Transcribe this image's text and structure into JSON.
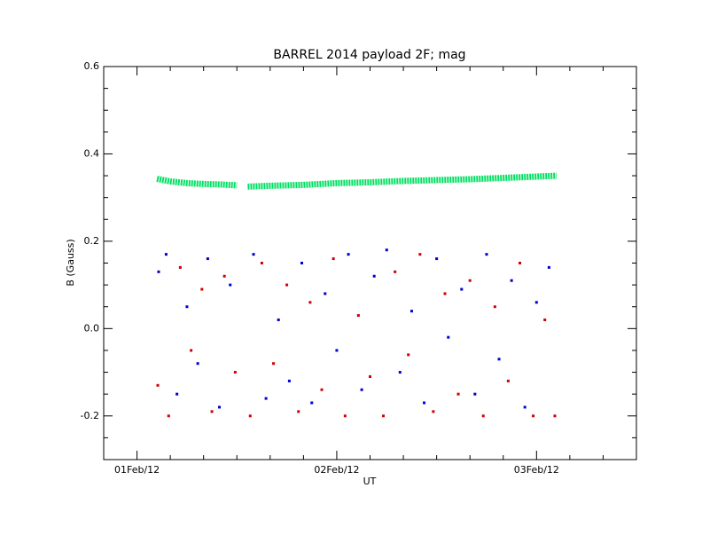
{
  "chart_data": {
    "type": "scatter",
    "title": "BARREL 2014 payload 2F; mag",
    "x_label": "UT",
    "y_label": "B (Gauss)",
    "xlim": [
      -4,
      60
    ],
    "ylim": [
      -0.3,
      0.6
    ],
    "xticks": [
      {
        "value": 0,
        "label": "01Feb/12"
      },
      {
        "value": 24,
        "label": "02Feb/12"
      },
      {
        "value": 48,
        "label": "03Feb/12"
      }
    ],
    "xminorticks": [
      -4,
      4,
      8,
      12,
      16,
      20,
      28,
      32,
      36,
      40,
      44,
      52,
      56,
      60
    ],
    "yticks": [
      {
        "value": -0.2,
        "label": "-0.2"
      },
      {
        "value": 0,
        "label": "0.0"
      },
      {
        "value": 0.2,
        "label": "0.2"
      },
      {
        "value": 0.4,
        "label": "0.4"
      },
      {
        "value": 0.6,
        "label": "0.6"
      }
    ],
    "yminorticks": [
      -0.3,
      -0.25,
      -0.15,
      -0.1,
      -0.05,
      0.05,
      0.1,
      0.15,
      0.25,
      0.3,
      0.35,
      0.45,
      0.5,
      0.55
    ],
    "series": [
      {
        "style": "line",
        "color": "#00e060",
        "x": [
          2.4,
          4,
          6,
          8,
          10,
          12,
          12.6,
          13.3,
          16,
          20,
          24,
          28,
          32,
          36,
          40,
          44,
          48,
          50.4
        ],
        "values": [
          0.343,
          0.337,
          0.333,
          0.331,
          0.33,
          0.328,
          null,
          0.325,
          0.327,
          0.329,
          0.333,
          0.335,
          0.338,
          0.34,
          0.342,
          0.345,
          0.348,
          0.35
        ]
      },
      {
        "style": "points",
        "color": "#d00000",
        "x": [
          2.5,
          3.8,
          5.2,
          6.5,
          7.8,
          9,
          10.5,
          11.8,
          13.6,
          15,
          16.4,
          18,
          19.4,
          20.8,
          22.2,
          23.6,
          25,
          26.6,
          28,
          29.6,
          31,
          32.6,
          34,
          35.6,
          37,
          38.6,
          40,
          41.6,
          43,
          44.6,
          46,
          47.6,
          49,
          50.2
        ],
        "values": [
          -0.13,
          -0.2,
          0.14,
          -0.05,
          0.09,
          -0.19,
          0.12,
          -0.1,
          -0.2,
          0.15,
          -0.08,
          0.1,
          -0.19,
          0.06,
          -0.14,
          0.16,
          -0.2,
          0.03,
          -0.11,
          -0.2,
          0.13,
          -0.06,
          0.17,
          -0.19,
          0.08,
          -0.15,
          0.11,
          -0.2,
          0.05,
          -0.12,
          0.15,
          -0.2,
          0.02,
          -0.2
        ]
      },
      {
        "style": "points",
        "color": "#0000d0",
        "x": [
          2.6,
          3.5,
          4.8,
          6,
          7.3,
          8.5,
          9.9,
          11.2,
          14,
          15.5,
          17,
          18.3,
          19.8,
          21,
          22.6,
          24,
          25.4,
          27,
          28.5,
          30,
          31.6,
          33,
          34.5,
          36,
          37.4,
          39,
          40.6,
          42,
          43.5,
          45,
          46.6,
          48,
          49.5
        ],
        "values": [
          0.13,
          0.17,
          -0.15,
          0.05,
          -0.08,
          0.16,
          -0.18,
          0.1,
          0.17,
          -0.16,
          0.02,
          -0.12,
          0.15,
          -0.17,
          0.08,
          -0.05,
          0.17,
          -0.14,
          0.12,
          0.18,
          -0.1,
          0.04,
          -0.17,
          0.16,
          -0.02,
          0.09,
          -0.15,
          0.17,
          -0.07,
          0.11,
          -0.18,
          0.06,
          0.14
        ]
      }
    ]
  }
}
